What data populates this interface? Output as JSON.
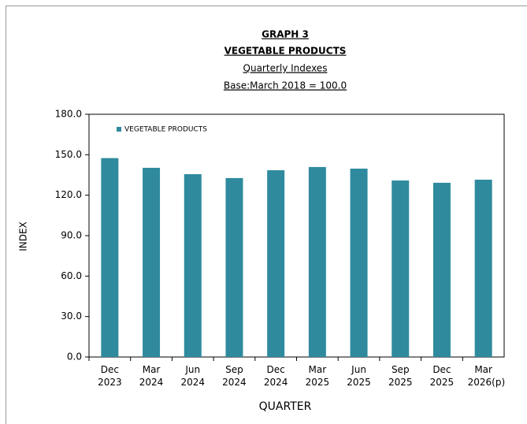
{
  "chart_data": {
    "type": "bar",
    "title": [
      "GRAPH 3",
      "VEGETABLE PRODUCTS"
    ],
    "subtitle": [
      "Quarterly Indexes",
      "Base:March 2018 = 100.0"
    ],
    "x_label": "QUARTER",
    "y_label": "INDEX",
    "categories": [
      "Dec 2023",
      "Mar 2024",
      "Jun 2024",
      "Sep 2024",
      "Dec 2024",
      "Mar 2025",
      "Jun 2025",
      "Sep 2025",
      "Dec 2025",
      "Mar 2026(p)"
    ],
    "series": [
      {
        "name": "VEGETABLE PRODUCTS",
        "color": "#2f8a9e",
        "values": [
          147.5,
          140.3,
          135.6,
          132.7,
          138.5,
          140.9,
          139.7,
          130.9,
          129.2,
          131.5
        ]
      }
    ],
    "ylim": [
      0,
      180
    ],
    "yticks": [
      {
        "value": 0,
        "label": "0.0"
      },
      {
        "value": 30,
        "label": "30.0"
      },
      {
        "value": 60,
        "label": "60.0"
      },
      {
        "value": 90,
        "label": "90.0"
      },
      {
        "value": 120,
        "label": "120.0"
      },
      {
        "value": 150,
        "label": "150.0"
      },
      {
        "value": 180,
        "label": "180.0"
      }
    ],
    "legend": "top-left"
  }
}
